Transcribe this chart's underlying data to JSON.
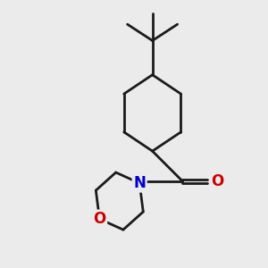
{
  "background_color": "#ebebeb",
  "line_color": "#1a1a1a",
  "N_color": "#0000cc",
  "O_color": "#cc0000",
  "line_width": 2.0,
  "figsize": [
    3.0,
    3.0
  ],
  "dpi": 100,
  "xlim": [
    0,
    10
  ],
  "ylim": [
    0,
    10
  ]
}
